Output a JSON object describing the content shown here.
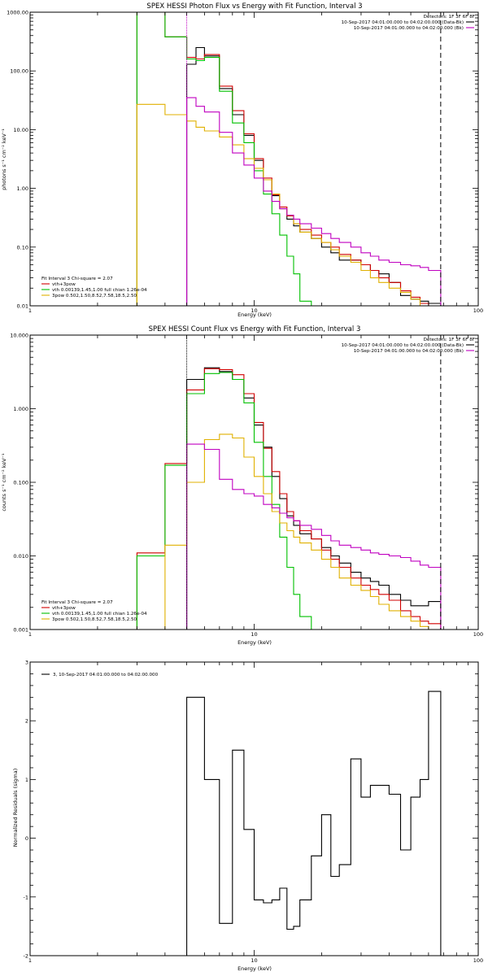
{
  "chart_data": [
    {
      "type": "line",
      "title": "SPEX HESSI Photon Flux vs Energy with Fit Function, Interval 3",
      "xlabel": "Energy (keV)",
      "ylabel": "photons s⁻¹ cm⁻² keV⁻¹",
      "xscale": "log",
      "yscale": "log",
      "xlim": [
        1,
        100
      ],
      "ylim": [
        0.01,
        1000
      ],
      "xticks": [
        {
          "v": 1,
          "label": "1"
        },
        {
          "v": 10,
          "label": "10"
        },
        {
          "v": 100,
          "label": "100"
        }
      ],
      "yticks": [
        {
          "v": 0.01,
          "label": "0.01"
        },
        {
          "v": 0.1,
          "label": "0.10"
        },
        {
          "v": 1,
          "label": "1.00"
        },
        {
          "v": 10,
          "label": "10.00"
        },
        {
          "v": 100,
          "label": "100.00"
        },
        {
          "v": 1000,
          "label": "1000.00"
        }
      ],
      "vlines": [
        {
          "x": 5.0,
          "color": "#c000c0",
          "dash": "1,1"
        },
        {
          "x": 68.0,
          "color": "#000000",
          "dash": "6,4"
        }
      ],
      "legend_right": {
        "header": "Detectors: 1F 3F 6F 8F",
        "entries": [
          {
            "text": "10-Sep-2017 04:01:00.000 to 04:02:00.000 (Data-Bk)",
            "color": "#000000"
          },
          {
            "text": "10-Sep-2017 04:01:00.000 to 04:02:00.000 (Bk)",
            "color": "#c000c0"
          }
        ]
      },
      "legend_left": {
        "header": "Fit Interval 3   Chi-square = 2.07",
        "entries": [
          {
            "text": "vth+3pow",
            "color": "#d00000"
          },
          {
            "text": "vth 0.00139,1.45,1.00  full chian 1.26e-04",
            "color": "#00c000"
          },
          {
            "text": "3pow 0.502,1.50,8.52,7.58,18.5,2.50",
            "color": "#e0b000"
          }
        ]
      },
      "edges": [
        3.0,
        4.0,
        5.0,
        5.5,
        6.0,
        7.0,
        8.0,
        9.0,
        10.0,
        11.0,
        12.0,
        13.0,
        14.0,
        15.0,
        16.0,
        18.0,
        20.0,
        22.0,
        24.0,
        27.0,
        30.0,
        33.0,
        36.0,
        40.0,
        45.0,
        50.0,
        55.0,
        60.0,
        68.0
      ],
      "series": [
        {
          "color": "#000000",
          "name": "",
          "values": [
            null,
            null,
            130,
            250,
            180,
            50,
            18,
            8,
            3,
            1.4,
            0.75,
            0.45,
            0.3,
            0.23,
            0.18,
            0.14,
            0.1,
            0.08,
            0.06,
            0.06,
            0.05,
            0.04,
            0.035,
            0.025,
            0.015,
            0.013,
            0.012,
            0.011
          ]
        },
        {
          "color": "#d00000",
          "name": "",
          "values": [
            1000,
            380,
            170,
            160,
            190,
            55,
            21,
            8.5,
            3.2,
            1.5,
            0.78,
            0.48,
            0.34,
            0.25,
            0.2,
            0.16,
            0.12,
            0.1,
            0.075,
            0.06,
            0.05,
            0.04,
            0.03,
            0.025,
            0.018,
            0.014,
            0.011,
            0.01
          ]
        },
        {
          "color": "#00c000",
          "name": "",
          "values": [
            1000,
            380,
            160,
            150,
            170,
            45,
            13,
            6,
            2,
            0.8,
            0.37,
            0.16,
            0.07,
            0.035,
            0.012,
            null,
            null,
            null,
            null,
            null,
            null,
            null,
            null,
            null,
            null,
            null,
            null,
            null
          ]
        },
        {
          "color": "#e0b000",
          "name": "",
          "values": [
            27,
            18,
            14,
            11,
            9.5,
            7.5,
            5.5,
            3.2,
            2.2,
            1.4,
            0.8,
            0.45,
            0.35,
            0.25,
            0.18,
            0.14,
            0.12,
            0.09,
            0.07,
            0.055,
            0.04,
            0.03,
            0.025,
            0.02,
            0.017,
            0.013,
            0.01,
            0.009
          ]
        },
        {
          "color": "#c000c0",
          "name": "",
          "values": [
            null,
            null,
            35,
            25,
            20,
            9,
            4,
            2.5,
            1.5,
            0.9,
            0.6,
            0.45,
            0.35,
            0.3,
            0.25,
            0.21,
            0.17,
            0.14,
            0.12,
            0.1,
            0.08,
            0.07,
            0.06,
            0.055,
            0.05,
            0.048,
            0.045,
            0.04
          ]
        }
      ]
    },
    {
      "type": "line",
      "title": "SPEX HESSI Count Flux vs Energy with Fit Function, Interval 3",
      "xlabel": "Energy (keV)",
      "ylabel": "counts s⁻¹ cm⁻² keV⁻¹",
      "xscale": "log",
      "yscale": "log",
      "xlim": [
        1,
        100
      ],
      "ylim": [
        0.001,
        10
      ],
      "xticks": [
        {
          "v": 1,
          "label": "1"
        },
        {
          "v": 10,
          "label": "10"
        },
        {
          "v": 100,
          "label": "100"
        }
      ],
      "yticks": [
        {
          "v": 0.001,
          "label": "0.001"
        },
        {
          "v": 0.01,
          "label": "0.010"
        },
        {
          "v": 0.1,
          "label": "0.100"
        },
        {
          "v": 1,
          "label": "1.000"
        },
        {
          "v": 10,
          "label": "10.000"
        }
      ],
      "vlines": [
        {
          "x": 5.0,
          "color": "#000000",
          "dash": "1,1"
        },
        {
          "x": 68.0,
          "color": "#000000",
          "dash": "6,4"
        }
      ],
      "legend_right": {
        "header": "Detectors: 1F 3F 6F 8F",
        "entries": [
          {
            "text": "10-Sep-2017 04:01:00.000 to 04:02:00.000 (Data-Bk)",
            "color": "#000000"
          },
          {
            "text": "10-Sep-2017 04:01:00.000 to 04:02:00.000 (Bk)",
            "color": "#c000c0"
          }
        ]
      },
      "legend_left": {
        "header": "Fit Interval 3   Chi-square = 2.07",
        "entries": [
          {
            "text": "vth+3pow",
            "color": "#d00000"
          },
          {
            "text": "vth 0.00139,1.45,1.00  full chian 1.26e-04",
            "color": "#00c000"
          },
          {
            "text": "3pow 0.502,1.50,8.52,7.58,18.5,2.50",
            "color": "#e0b000"
          }
        ]
      },
      "edges": [
        3.0,
        4.0,
        5.0,
        6.0,
        7.0,
        8.0,
        9.0,
        10.0,
        11.0,
        12.0,
        13.0,
        14.0,
        15.0,
        16.0,
        18.0,
        20.0,
        22.0,
        24.0,
        27.0,
        30.0,
        33.0,
        36.0,
        40.0,
        45.0,
        50.0,
        55.0,
        60.0,
        68.0
      ],
      "series": [
        {
          "color": "#000000",
          "name": "",
          "values": [
            null,
            null,
            2.5,
            3.6,
            3.2,
            2.5,
            1.4,
            0.6,
            0.3,
            0.12,
            0.06,
            0.035,
            0.026,
            0.02,
            0.017,
            0.013,
            0.01,
            0.008,
            0.006,
            0.005,
            0.0045,
            0.004,
            0.003,
            0.0025,
            0.0021,
            0.0021,
            0.0024
          ]
        },
        {
          "color": "#d00000",
          "name": "",
          "values": [
            0.011,
            0.18,
            1.8,
            3.5,
            3.4,
            2.9,
            1.6,
            0.65,
            0.29,
            0.14,
            0.07,
            0.04,
            0.03,
            0.022,
            0.017,
            0.012,
            0.009,
            0.007,
            0.005,
            0.004,
            0.0035,
            0.003,
            0.0025,
            0.0018,
            0.0015,
            0.0013,
            0.0012
          ]
        },
        {
          "color": "#00c000",
          "name": "",
          "values": [
            0.01,
            0.17,
            1.6,
            3.0,
            3.1,
            2.5,
            1.2,
            0.35,
            0.12,
            0.05,
            0.018,
            0.007,
            0.003,
            0.0015,
            0.001,
            null,
            null,
            null,
            null,
            null,
            null,
            null,
            null,
            null,
            null,
            null,
            null
          ]
        },
        {
          "color": "#e0b000",
          "name": "",
          "values": [
            null,
            0.014,
            0.1,
            0.38,
            0.45,
            0.4,
            0.22,
            0.12,
            0.07,
            0.04,
            0.028,
            0.022,
            0.018,
            0.015,
            0.012,
            0.009,
            0.007,
            0.005,
            0.004,
            0.0034,
            0.0028,
            0.0022,
            0.0018,
            0.0015,
            0.0013,
            0.0011,
            0.001
          ]
        },
        {
          "color": "#c000c0",
          "name": "",
          "values": [
            null,
            null,
            0.33,
            0.28,
            0.11,
            0.08,
            0.07,
            0.065,
            0.05,
            0.045,
            0.038,
            0.033,
            0.03,
            0.026,
            0.023,
            0.019,
            0.016,
            0.014,
            0.013,
            0.012,
            0.011,
            0.0105,
            0.01,
            0.0095,
            0.0085,
            0.0075,
            0.007
          ]
        }
      ]
    },
    {
      "type": "line",
      "title": "",
      "xlabel": "Energy (keV)",
      "ylabel": "Normalized Residuals (sigma)",
      "xscale": "log",
      "yscale": "linear",
      "xlim": [
        1,
        100
      ],
      "ylim": [
        -2,
        3
      ],
      "xticks": [
        {
          "v": 1,
          "label": "1"
        },
        {
          "v": 10,
          "label": "10"
        },
        {
          "v": 100,
          "label": "100"
        }
      ],
      "yticks": [
        {
          "v": -2,
          "label": "-2"
        },
        {
          "v": -1,
          "label": "-1"
        },
        {
          "v": 0,
          "label": "0"
        },
        {
          "v": 1,
          "label": "1"
        },
        {
          "v": 2,
          "label": "2"
        },
        {
          "v": 3,
          "label": "3"
        }
      ],
      "vlines": [],
      "legend_right": {
        "header": "",
        "entries": []
      },
      "legend_left": {
        "header": "",
        "entries": [
          {
            "text": "3, 10-Sep-2017 04:01:00.000 to 04:02:00.000",
            "color": "#000000"
          }
        ]
      },
      "legend_left_pos": "top-left",
      "residual_floor": -2,
      "edges": [
        5.0,
        6.0,
        7.0,
        8.0,
        9.0,
        10.0,
        11.0,
        12.0,
        13.0,
        14.0,
        15.0,
        16.0,
        18.0,
        20.0,
        22.0,
        24.0,
        27.0,
        30.0,
        33.0,
        36.0,
        40.0,
        45.0,
        50.0,
        55.0,
        60.0,
        68.0
      ],
      "series": [
        {
          "color": "#000000",
          "name": "",
          "values": [
            2.4,
            1.0,
            -1.45,
            1.5,
            0.15,
            -1.05,
            -1.1,
            -1.05,
            -0.85,
            -1.55,
            -1.5,
            -1.05,
            -0.3,
            0.4,
            -0.65,
            -0.45,
            1.35,
            0.7,
            0.9,
            0.9,
            0.75,
            -0.2,
            0.7,
            1.0,
            2.5
          ]
        }
      ]
    }
  ]
}
